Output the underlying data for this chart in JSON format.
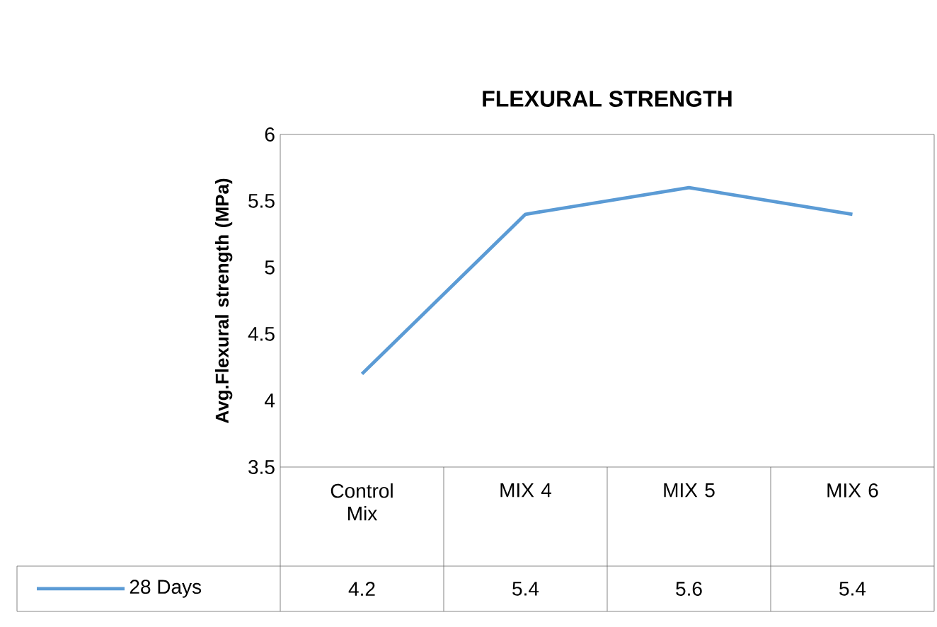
{
  "chart_data": {
    "type": "line",
    "title": "FLEXURAL STRENGTH",
    "ylabel": "Avg.Flexural strength (MPa)",
    "categories": [
      "Control Mix",
      "MIX 4",
      "MIX 5",
      "MIX 6"
    ],
    "series": [
      {
        "name": "28 Days",
        "color": "#5b9bd5",
        "values": [
          4.2,
          5.4,
          5.6,
          5.4
        ]
      }
    ],
    "ylim": [
      3.5,
      6
    ],
    "yticks": [
      3.5,
      4,
      4.5,
      5,
      5.5,
      6
    ],
    "data_labels": true,
    "legend": "bottom",
    "marker": "none",
    "line_style": "solid",
    "grid": false
  }
}
